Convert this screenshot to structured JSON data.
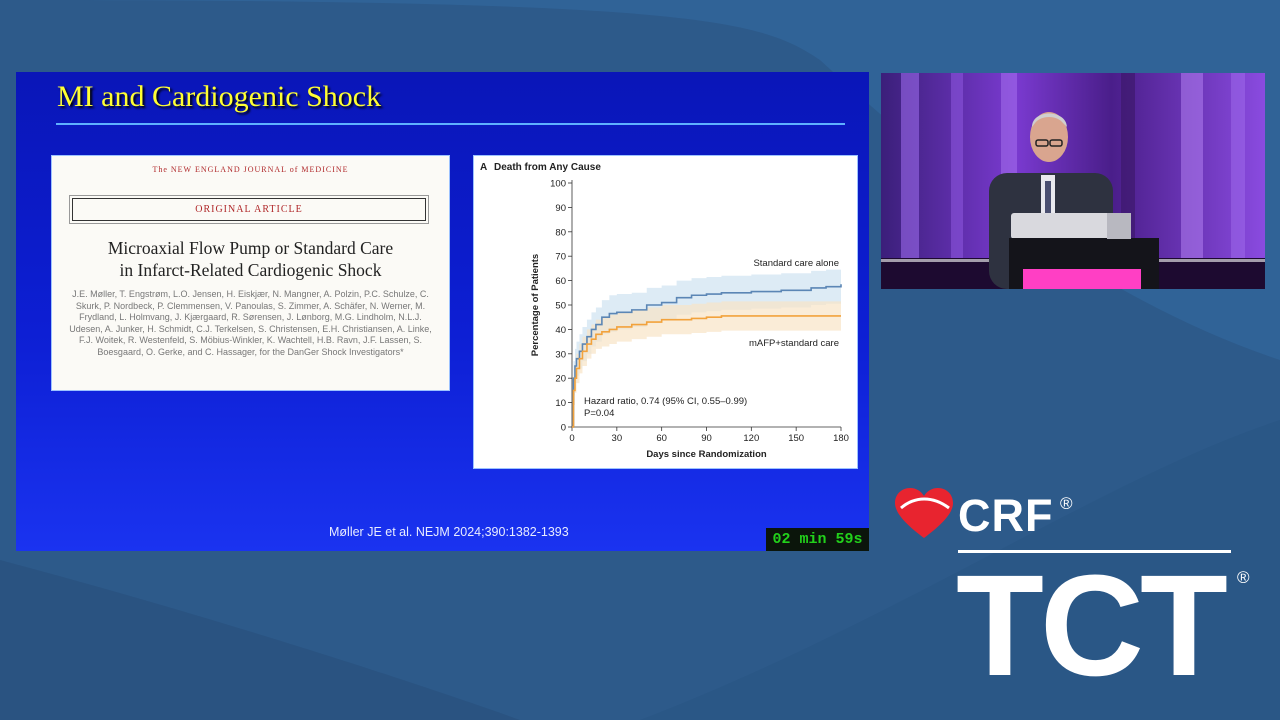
{
  "slide": {
    "title": "MI and Cardiogenic Shock",
    "citation": "Møller JE et al. NEJM 2024;390:1382-1393",
    "timer": "02 min 59s"
  },
  "article": {
    "journal": "The NEW ENGLAND JOURNAL of MEDICINE",
    "label": "ORIGINAL ARTICLE",
    "title_line1": "Microaxial Flow Pump or Standard Care",
    "title_line2": "in Infarct-Related Cardiogenic Shock",
    "authors": "J.E. Møller, T. Engstrøm, L.O. Jensen, H. Eiskjær, N. Mangner, A. Polzin, P.C. Schulze, C. Skurk, P. Nordbeck, P. Clemmensen, V. Panoulas, S. Zimmer, A. Schäfer, N. Werner, M. Frydland, L. Holmvang, J. Kjærgaard, R. Sørensen, J. Lønborg, M.G. Lindholm, N.L.J. Udesen, A. Junker, H. Schmidt, C.J. Terkelsen, S. Christensen, E.H. Christiansen, A. Linke, F.J. Woitek, R. Westenfeld, S. Möbius-Winkler, K. Wachtell, H.B. Ravn, J.F. Lassen, S. Boesgaard, O. Gerke, and C. Hassager, for the DanGer Shock Investigators*"
  },
  "chart_data": {
    "type": "line",
    "panel_label": "A",
    "title": "Death from Any Cause",
    "xlabel": "Days since Randomization",
    "ylabel": "Percentage of Patients",
    "xlim": [
      0,
      180
    ],
    "ylim": [
      0,
      100
    ],
    "xticks": [
      0,
      30,
      60,
      90,
      120,
      150,
      180
    ],
    "yticks": [
      0,
      10,
      20,
      30,
      40,
      50,
      60,
      70,
      80,
      90,
      100
    ],
    "annotation_line1": "Hazard ratio, 0.74 (95% CI, 0.55–0.99)",
    "annotation_line2": "P=0.04",
    "series": [
      {
        "name": "Standard care alone",
        "color": "#5b86b5",
        "band_color": "#cfe2f1",
        "x": [
          0,
          1,
          2,
          3,
          5,
          7,
          10,
          13,
          16,
          20,
          25,
          30,
          40,
          50,
          60,
          70,
          80,
          90,
          100,
          120,
          140,
          160,
          170,
          180
        ],
        "y": [
          0,
          20,
          25,
          28,
          31,
          34,
          37,
          40,
          42,
          45,
          46.5,
          47,
          48,
          50,
          51,
          53,
          54,
          54.5,
          55,
          55.5,
          56,
          57,
          57.5,
          58.5
        ],
        "ci_low": [
          0,
          13,
          18,
          21,
          24,
          27,
          30,
          33,
          35,
          38,
          39,
          40,
          41,
          43,
          44,
          46,
          47,
          47.5,
          48,
          48.5,
          49,
          50,
          50.5,
          51.5
        ],
        "ci_high": [
          0,
          27,
          32,
          35,
          38,
          41,
          44,
          47,
          49,
          52,
          54,
          54.5,
          55,
          57,
          58,
          60,
          61,
          61.5,
          62,
          62.5,
          63,
          64,
          64.5,
          65.5
        ]
      },
      {
        "name": "mAFP+standard care",
        "color": "#f2a23c",
        "band_color": "#f8e4c6",
        "x": [
          0,
          1,
          2,
          3,
          5,
          7,
          10,
          13,
          16,
          20,
          25,
          30,
          40,
          50,
          60,
          70,
          80,
          90,
          100,
          120,
          140,
          160,
          180
        ],
        "y": [
          0,
          15,
          20,
          24,
          28,
          31,
          34,
          36,
          38,
          39,
          40,
          41,
          42,
          43,
          44,
          44,
          44.5,
          45,
          45.5,
          45.5,
          45.5,
          45.5,
          45.5
        ],
        "ci_low": [
          0,
          9,
          14,
          18,
          22,
          25,
          28,
          30,
          32,
          33,
          34,
          35,
          36,
          37,
          38,
          38,
          38.5,
          39,
          39.5,
          39.5,
          39.5,
          39.5,
          39.5
        ],
        "ci_high": [
          0,
          21,
          26,
          30,
          34,
          37,
          40,
          42,
          44,
          45,
          46,
          47,
          48,
          49,
          50,
          50,
          50.5,
          51,
          51.5,
          51.5,
          51.5,
          51.5,
          51.5
        ]
      }
    ]
  },
  "branding": {
    "crf": "CRF",
    "tct": "TCT",
    "registered": "®",
    "heart_color": "#e8242f"
  }
}
